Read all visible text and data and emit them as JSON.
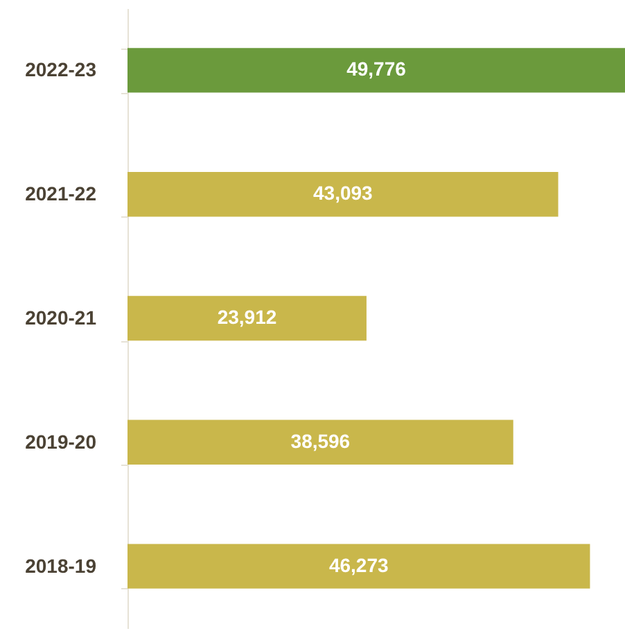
{
  "chart_data": {
    "type": "bar",
    "orientation": "horizontal",
    "categories": [
      "2022-23",
      "2021-22",
      "2020-21",
      "2019-20",
      "2018-19"
    ],
    "values": [
      49776,
      43093,
      23912,
      38596,
      46273
    ],
    "colors": [
      "#6b9a3c",
      "#c9b74b",
      "#c9b74b",
      "#c9b74b",
      "#c9b74b"
    ],
    "value_labels": [
      "49,776",
      "43,093",
      "23,912",
      "38,596",
      "46,273"
    ],
    "tick_labels": "y"
  }
}
